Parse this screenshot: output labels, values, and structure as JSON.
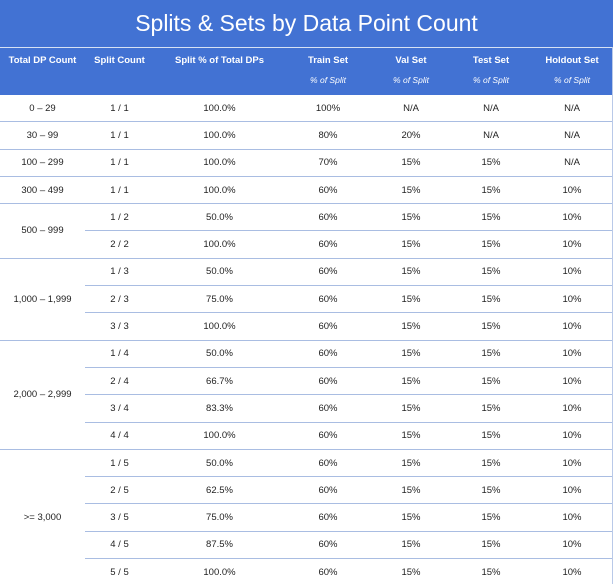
{
  "title": "Splits & Sets by Data Point Count",
  "headers": [
    {
      "label": "Total DP Count",
      "sub": ""
    },
    {
      "label": "Split Count",
      "sub": ""
    },
    {
      "label": "Split % of Total DPs",
      "sub": ""
    },
    {
      "label": "Train Set",
      "sub": "% of Split"
    },
    {
      "label": "Val Set",
      "sub": "% of Split"
    },
    {
      "label": "Test Set",
      "sub": "% of Split"
    },
    {
      "label": "Holdout Set",
      "sub": "% of Split"
    }
  ],
  "groups": [
    {
      "range": "0 – 29",
      "rows": [
        {
          "split": "1 / 1",
          "pct": "100.0%",
          "train": "100%",
          "val": "N/A",
          "test": "N/A",
          "holdout": "N/A"
        }
      ]
    },
    {
      "range": "30 – 99",
      "rows": [
        {
          "split": "1 / 1",
          "pct": "100.0%",
          "train": "80%",
          "val": "20%",
          "test": "N/A",
          "holdout": "N/A"
        }
      ]
    },
    {
      "range": "100 – 299",
      "rows": [
        {
          "split": "1 / 1",
          "pct": "100.0%",
          "train": "70%",
          "val": "15%",
          "test": "15%",
          "holdout": "N/A"
        }
      ]
    },
    {
      "range": "300 – 499",
      "rows": [
        {
          "split": "1 / 1",
          "pct": "100.0%",
          "train": "60%",
          "val": "15%",
          "test": "15%",
          "holdout": "10%"
        }
      ]
    },
    {
      "range": "500 – 999",
      "rows": [
        {
          "split": "1 / 2",
          "pct": "50.0%",
          "train": "60%",
          "val": "15%",
          "test": "15%",
          "holdout": "10%"
        },
        {
          "split": "2 / 2",
          "pct": "100.0%",
          "train": "60%",
          "val": "15%",
          "test": "15%",
          "holdout": "10%"
        }
      ]
    },
    {
      "range": "1,000 – 1,999",
      "rows": [
        {
          "split": "1 / 3",
          "pct": "50.0%",
          "train": "60%",
          "val": "15%",
          "test": "15%",
          "holdout": "10%"
        },
        {
          "split": "2 / 3",
          "pct": "75.0%",
          "train": "60%",
          "val": "15%",
          "test": "15%",
          "holdout": "10%"
        },
        {
          "split": "3 / 3",
          "pct": "100.0%",
          "train": "60%",
          "val": "15%",
          "test": "15%",
          "holdout": "10%"
        }
      ]
    },
    {
      "range": "2,000 – 2,999",
      "rows": [
        {
          "split": "1 / 4",
          "pct": "50.0%",
          "train": "60%",
          "val": "15%",
          "test": "15%",
          "holdout": "10%"
        },
        {
          "split": "2 / 4",
          "pct": "66.7%",
          "train": "60%",
          "val": "15%",
          "test": "15%",
          "holdout": "10%"
        },
        {
          "split": "3 / 4",
          "pct": "83.3%",
          "train": "60%",
          "val": "15%",
          "test": "15%",
          "holdout": "10%"
        },
        {
          "split": "4 / 4",
          "pct": "100.0%",
          "train": "60%",
          "val": "15%",
          "test": "15%",
          "holdout": "10%"
        }
      ]
    },
    {
      "range": ">= 3,000",
      "rows": [
        {
          "split": "1 / 5",
          "pct": "50.0%",
          "train": "60%",
          "val": "15%",
          "test": "15%",
          "holdout": "10%"
        },
        {
          "split": "2 / 5",
          "pct": "62.5%",
          "train": "60%",
          "val": "15%",
          "test": "15%",
          "holdout": "10%"
        },
        {
          "split": "3 / 5",
          "pct": "75.0%",
          "train": "60%",
          "val": "15%",
          "test": "15%",
          "holdout": "10%"
        },
        {
          "split": "4 / 5",
          "pct": "87.5%",
          "train": "60%",
          "val": "15%",
          "test": "15%",
          "holdout": "10%"
        },
        {
          "split": "5 / 5",
          "pct": "100.0%",
          "train": "60%",
          "val": "15%",
          "test": "15%",
          "holdout": "10%"
        }
      ]
    }
  ],
  "colors": {
    "header_bg": "#4272d3",
    "header_text": "#ffffff",
    "row_divider": "#a9bde2"
  }
}
